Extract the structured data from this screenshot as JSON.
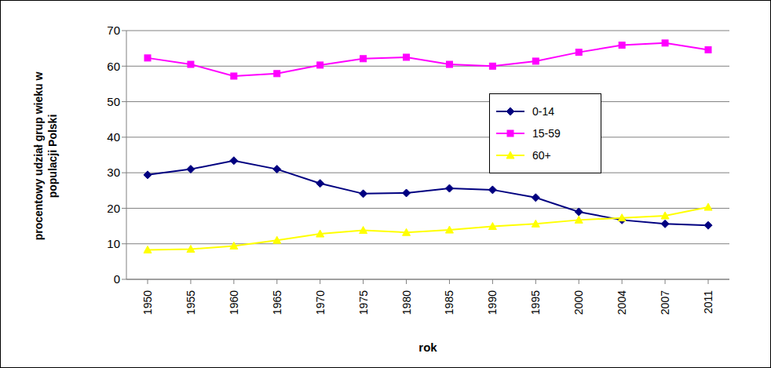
{
  "chart_data": {
    "type": "line",
    "ylabel": "procentowy udział grup wieku w populacji Polski",
    "xlabel": "rok",
    "categories": [
      "1950",
      "1955",
      "1960",
      "1965",
      "1970",
      "1975",
      "1980",
      "1985",
      "1990",
      "1995",
      "2000",
      "2004",
      "2007",
      "2011"
    ],
    "series": [
      {
        "name": "0-14",
        "color": "#000080",
        "marker": "diamond",
        "values": [
          29.4,
          31,
          33.4,
          31,
          27,
          24.1,
          24.3,
          25.6,
          25.2,
          23,
          19,
          16.7,
          15.6,
          15.2
        ]
      },
      {
        "name": "15-59",
        "color": "#ff00ff",
        "marker": "square",
        "values": [
          62.3,
          60.5,
          57.2,
          57.9,
          60.3,
          62.1,
          62.5,
          60.5,
          60,
          61.4,
          63.9,
          65.9,
          66.5,
          64.6
        ]
      },
      {
        "name": "60+",
        "color": "#ffff00",
        "marker": "triangle",
        "values": [
          8.3,
          8.5,
          9.4,
          11,
          12.8,
          13.8,
          13.2,
          13.9,
          14.9,
          15.6,
          16.7,
          17.3,
          17.9,
          20.3
        ]
      }
    ],
    "ylim": [
      0,
      70
    ],
    "yticks": [
      0,
      10,
      20,
      30,
      40,
      50,
      60,
      70
    ],
    "grid": true,
    "legend": "right"
  }
}
